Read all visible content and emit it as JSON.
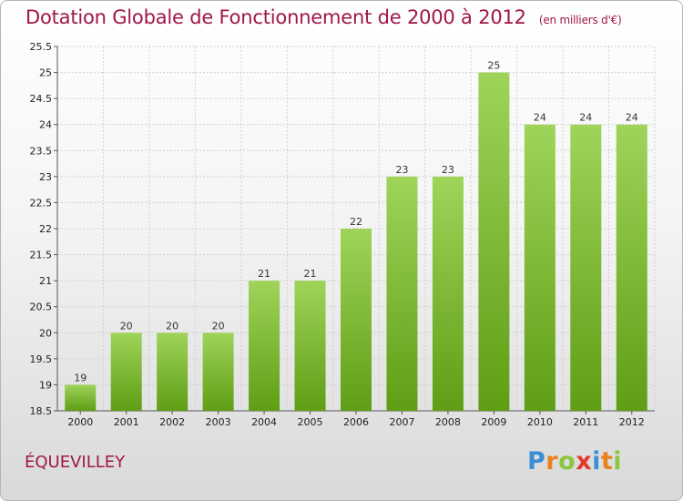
{
  "header": {
    "title": "Dotation Globale de Fonctionnement de 2000 à 2012",
    "subtitle": "(en milliers d'€)"
  },
  "footer": {
    "town": "ÉQUEVILLEY",
    "logo_letters": [
      {
        "ch": "P",
        "color": "#3a8fd8"
      },
      {
        "ch": "r",
        "color": "#e8821e"
      },
      {
        "ch": "o",
        "color": "#8cc63f"
      },
      {
        "ch": "x",
        "color": "#e23a2c"
      },
      {
        "ch": "i",
        "color": "#3a8fd8"
      },
      {
        "ch": "t",
        "color": "#e8821e"
      },
      {
        "ch": "i",
        "color": "#8cc63f"
      }
    ]
  },
  "colors": {
    "bar_top": "#9fd45a",
    "bar_bottom": "#5f9e14",
    "title": "#a0164a"
  },
  "chart_data": {
    "type": "bar",
    "categories": [
      "2000",
      "2001",
      "2002",
      "2003",
      "2004",
      "2005",
      "2006",
      "2007",
      "2008",
      "2009",
      "2010",
      "2011",
      "2012"
    ],
    "values": [
      19,
      20,
      20,
      20,
      21,
      21,
      22,
      23,
      23,
      25,
      24,
      24,
      24
    ],
    "value_labels": [
      "19",
      "20",
      "20",
      "20",
      "21",
      "21",
      "22",
      "23",
      "23",
      "25",
      "24",
      "24",
      "24"
    ],
    "y_ticks": [
      "18.5",
      "19",
      "19.5",
      "20",
      "20.5",
      "21",
      "21.5",
      "22",
      "22.5",
      "23",
      "23.5",
      "24",
      "24.5",
      "25",
      "25.5"
    ],
    "ylim": [
      18.5,
      25.5
    ],
    "grid": true,
    "legend": "none"
  }
}
